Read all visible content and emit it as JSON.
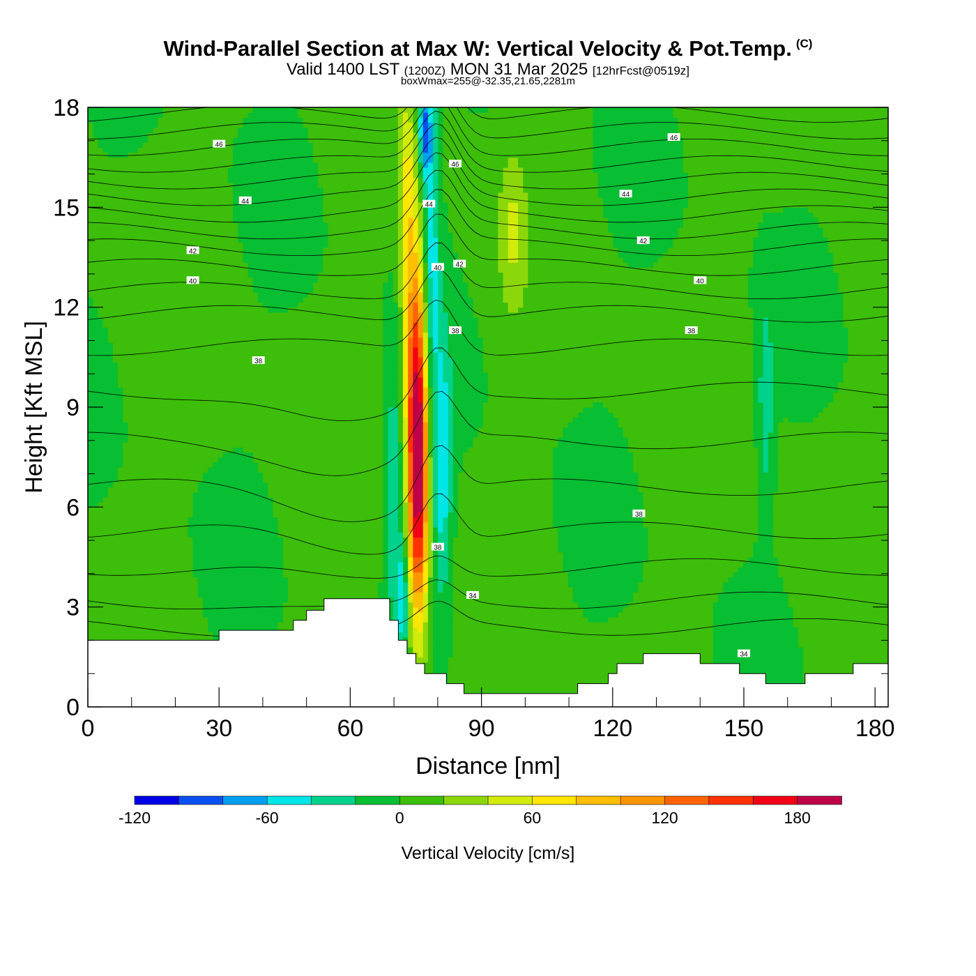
{
  "title": {
    "main": "Wind-Parallel Section at Max W: Vertical Velocity & Pot.Temp.",
    "copyright": "(C)",
    "valid_prefix": "Valid 1400 LST",
    "valid_utc": "(1200Z)",
    "valid_date": "MON 31 Mar 2025",
    "forecast": "[12hrFcst@0519z]",
    "box_info": "boxWmax=255@-32.35,21.65,2281m"
  },
  "chart_data": {
    "type": "heatmap",
    "xlabel": "Distance [nm]",
    "ylabel": "Height [Kft MSL]",
    "xlim": [
      0,
      183
    ],
    "ylim": [
      0,
      18
    ],
    "x_ticks": [
      "0",
      "30",
      "60",
      "90",
      "120",
      "150",
      "180"
    ],
    "x_tick_values": [
      0,
      30,
      60,
      90,
      120,
      150,
      180
    ],
    "y_ticks": [
      "0",
      "3",
      "6",
      "9",
      "12",
      "15",
      "18"
    ],
    "y_tick_values": [
      0,
      3,
      6,
      9,
      12,
      15,
      18
    ],
    "colorbar": {
      "title": "Vertical Velocity [cm/s]",
      "labels": [
        "-120",
        "-60",
        "0",
        "60",
        "120",
        "180"
      ],
      "label_values": [
        -120,
        -60,
        0,
        60,
        120,
        180
      ],
      "range": [
        -120,
        200
      ],
      "step": 20,
      "colors": [
        "#0000e6",
        "#0a50f0",
        "#00a0f0",
        "#00e6e6",
        "#00d28c",
        "#08be32",
        "#3cbe0a",
        "#8cd70a",
        "#d2eb0a",
        "#ffe600",
        "#ffbe00",
        "#ff9600",
        "#ff6400",
        "#ff3200",
        "#f00014",
        "#be0046"
      ]
    },
    "terrain_profile": [
      [
        0,
        2.0
      ],
      [
        30,
        2.0
      ],
      [
        30,
        2.3
      ],
      [
        47,
        2.3
      ],
      [
        47,
        2.6
      ],
      [
        50,
        2.6
      ],
      [
        50,
        2.9
      ],
      [
        54,
        2.9
      ],
      [
        54,
        3.25
      ],
      [
        69,
        3.25
      ],
      [
        69,
        2.6
      ],
      [
        71,
        2.6
      ],
      [
        71,
        2.0
      ],
      [
        73,
        2.0
      ],
      [
        73,
        1.6
      ],
      [
        75,
        1.6
      ],
      [
        75,
        1.3
      ],
      [
        77,
        1.3
      ],
      [
        77,
        1.0
      ],
      [
        82,
        1.0
      ],
      [
        82,
        0.7
      ],
      [
        86,
        0.7
      ],
      [
        86,
        0.4
      ],
      [
        112,
        0.4
      ],
      [
        112,
        0.7
      ],
      [
        119,
        0.7
      ],
      [
        119,
        1.0
      ],
      [
        121,
        1.0
      ],
      [
        121,
        1.3
      ],
      [
        127,
        1.3
      ],
      [
        127,
        1.6
      ],
      [
        140,
        1.6
      ],
      [
        140,
        1.3
      ],
      [
        149,
        1.3
      ],
      [
        149,
        1.0
      ],
      [
        155,
        1.0
      ],
      [
        155,
        0.7
      ],
      [
        164,
        0.7
      ],
      [
        164,
        1.0
      ],
      [
        175,
        1.0
      ],
      [
        175,
        1.3
      ],
      [
        183,
        1.3
      ]
    ],
    "velocity_features": [
      {
        "x": 75.5,
        "y": 7.0,
        "sx": 1.6,
        "sy": 3.2,
        "value": 190
      },
      {
        "x": 74.5,
        "y": 11.0,
        "sx": 1.8,
        "sy": 2.8,
        "value": 80
      },
      {
        "x": 73.0,
        "y": 15.5,
        "sx": 1.3,
        "sy": 2.0,
        "value": 50
      },
      {
        "x": 81.0,
        "y": 7.0,
        "sx": 1.6,
        "sy": 3.0,
        "value": -55
      },
      {
        "x": 78.5,
        "y": 14.5,
        "sx": 1.3,
        "sy": 3.5,
        "value": -55
      },
      {
        "x": 77.0,
        "y": 17.3,
        "sx": 1.0,
        "sy": 1.0,
        "value": -80
      },
      {
        "x": 70.0,
        "y": 6.5,
        "sx": 1.5,
        "sy": 3.0,
        "value": -40
      },
      {
        "x": 72.0,
        "y": 3.3,
        "sx": 1.0,
        "sy": 1.2,
        "value": -55
      },
      {
        "x": 97.0,
        "y": 14.3,
        "sx": 2.0,
        "sy": 1.6,
        "value": 35
      },
      {
        "x": 155.0,
        "y": 9.0,
        "sx": 1.3,
        "sy": 2.3,
        "value": -35
      }
    ],
    "theta_labels": [
      {
        "text": "46",
        "x": 30,
        "y": 16.9
      },
      {
        "text": "44",
        "x": 36,
        "y": 15.2
      },
      {
        "text": "42",
        "x": 24,
        "y": 13.7
      },
      {
        "text": "40",
        "x": 24,
        "y": 12.8
      },
      {
        "text": "38",
        "x": 39,
        "y": 10.4
      },
      {
        "text": "46",
        "x": 84,
        "y": 16.3
      },
      {
        "text": "44",
        "x": 78,
        "y": 15.1
      },
      {
        "text": "42",
        "x": 85,
        "y": 13.3
      },
      {
        "text": "40",
        "x": 80,
        "y": 13.2
      },
      {
        "text": "38",
        "x": 84,
        "y": 11.3
      },
      {
        "text": "38",
        "x": 80,
        "y": 4.8
      },
      {
        "text": "34",
        "x": 88,
        "y": 3.35
      },
      {
        "text": "46",
        "x": 134,
        "y": 17.1
      },
      {
        "text": "44",
        "x": 123,
        "y": 15.4
      },
      {
        "text": "42",
        "x": 127,
        "y": 14.0
      },
      {
        "text": "40",
        "x": 140,
        "y": 12.8
      },
      {
        "text": "38",
        "x": 138,
        "y": 11.3
      },
      {
        "text": "38",
        "x": 126,
        "y": 5.8
      },
      {
        "text": "34",
        "x": 150,
        "y": 1.6
      }
    ]
  }
}
